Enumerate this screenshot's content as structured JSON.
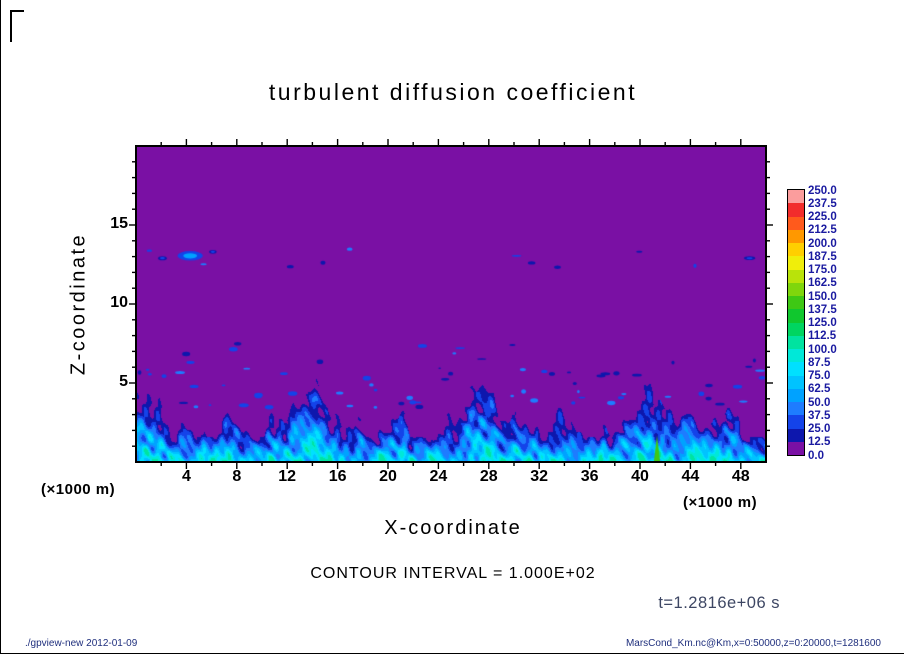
{
  "chart_data": {
    "type": "heatmap",
    "title": "turbulent diffusion coefficient",
    "xlabel": "X-coordinate",
    "ylabel": "Z-coordinate",
    "axis_unit_note": "(×1000 m)",
    "x_range_m": [
      0,
      50000
    ],
    "z_range_m": [
      0,
      20000
    ],
    "x_ticks": [
      4,
      8,
      12,
      16,
      20,
      24,
      28,
      32,
      36,
      40,
      44,
      48
    ],
    "z_ticks": [
      5,
      10,
      15
    ],
    "x_major_step": 4,
    "x_minor_step": 2,
    "z_major_step": 5,
    "z_minor_step": 1,
    "level_min": 0.0,
    "level_max": 250.0,
    "level_step": 12.5,
    "contour_interval_text": "CONTOUR INTERVAL = 1.000E+02",
    "time_text": "t=1.2816e+06 s",
    "colorbar": {
      "position": "right",
      "labels_top_to_bottom": [
        "250.0",
        "237.5",
        "225.0",
        "212.5",
        "200.0",
        "187.5",
        "175.0",
        "162.5",
        "150.0",
        "137.5",
        "125.0",
        "112.5",
        "100.0",
        "87.5",
        "75.0",
        "62.5",
        "50.0",
        "37.5",
        "25.0",
        "12.5",
        "0.0"
      ],
      "colors_top_to_bottom": [
        "#fb9d9d",
        "#f22c2c",
        "#ff5a1c",
        "#ff9800",
        "#ffcf00",
        "#f0ee0a",
        "#b9e30a",
        "#7fd60c",
        "#3ec814",
        "#10c72e",
        "#00d560",
        "#00e3a0",
        "#00e8d8",
        "#00e0ff",
        "#00c3ff",
        "#00a2ff",
        "#1e7cff",
        "#1443e9",
        "#0d17ad",
        "#7a10a4"
      ]
    },
    "field_summary": "Value ~0 (purple, lowest bin 0-12.5) over most of the domain; turbulent boundary layer below z ~2000-5000 m with values ~12.5-100 (navy, blue, cyan) in plume-like streaky structures; scattered small dark-blue patches between z ~4000-7500 m; isolated blue patches near z ~13000 m around x ~2000-6500 m and a few farther right; one narrow green maximum (~140) near x ~41300 m at the surface.",
    "render_params": {
      "seed": 20120109,
      "base_height_km": 2.7,
      "field_value_cap": 108,
      "speckles": {
        "count": 85
      },
      "features": [
        {
          "type": "blob",
          "x": 4.3,
          "z": 13.05,
          "rx": 1.0,
          "rz": 0.3,
          "value": 55,
          "edge_value": 30
        },
        {
          "type": "blob",
          "x": 2.1,
          "z": 12.9,
          "rx": 0.35,
          "rz": 0.13,
          "value": 30,
          "edge_value": 17
        },
        {
          "type": "blob",
          "x": 6.1,
          "z": 13.3,
          "rx": 0.3,
          "rz": 0.12,
          "value": 28,
          "edge_value": 17
        },
        {
          "type": "blob",
          "x": 31.4,
          "z": 12.6,
          "rx": 0.3,
          "rz": 0.1,
          "value": 22,
          "edge_value": 15
        },
        {
          "type": "blob",
          "x": 48.7,
          "z": 12.9,
          "rx": 0.45,
          "rz": 0.12,
          "value": 26,
          "edge_value": 15
        },
        {
          "type": "spike",
          "x": 41.35,
          "w": 0.5,
          "h": 1.7,
          "value": 140
        }
      ]
    }
  },
  "footer": {
    "left": "./gpview-new  2012-01-09",
    "right": "MarsCond_Km.nc@Km,x=0:50000,z=0:20000,t=1281600"
  }
}
